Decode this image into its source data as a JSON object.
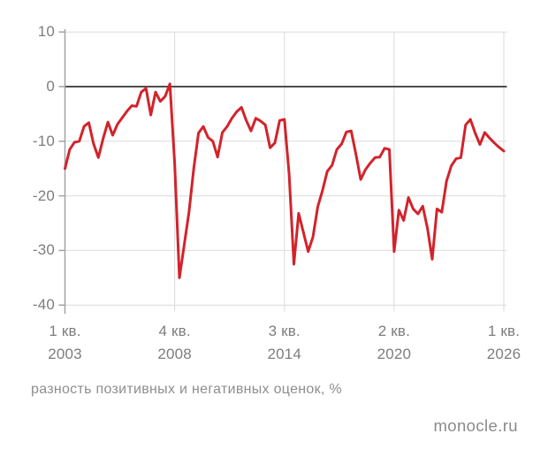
{
  "page": {
    "background": "#ffffff"
  },
  "watermark": {
    "text": "monocle.ru"
  },
  "chart_data": {
    "type": "line",
    "title": "",
    "caption": "разность позитивных и негативных оценок, %",
    "xlabel": "",
    "ylabel": "",
    "unit": "%",
    "grid": true,
    "zero_line": true,
    "legend_position": "none",
    "ylim": [
      -40,
      10
    ],
    "yticks": [
      10,
      0,
      -10,
      -20,
      -30,
      -40
    ],
    "xticks": [
      {
        "quarter": "1 кв.",
        "year": "2003"
      },
      {
        "quarter": "4 кв.",
        "year": "2008"
      },
      {
        "quarter": "3 кв.",
        "year": "2014"
      },
      {
        "quarter": "2 кв.",
        "year": "2020"
      },
      {
        "quarter": "1 кв.",
        "year": "2026"
      }
    ],
    "colors": {
      "line": "#d2232b",
      "zero_line": "#4d4d4d",
      "grid": "#dbdbdb",
      "axis": "#a3a3a3",
      "tick_text": "#7d7d7d"
    },
    "series": [
      {
        "name": "разность позитивных и негативных оценок, %",
        "frequency": "quarterly",
        "start": "2003-Q1",
        "end": "2026-Q1",
        "values": [
          -15.0,
          -11.5,
          -10.2,
          -10.0,
          -7.3,
          -6.6,
          -10.5,
          -13.0,
          -9.5,
          -6.5,
          -8.9,
          -6.9,
          -5.7,
          -4.5,
          -3.5,
          -3.6,
          -1.0,
          -0.3,
          -5.2,
          -1.0,
          -2.7,
          -1.8,
          0.5,
          -14.0,
          -35.0,
          -29.0,
          -23.0,
          -15.0,
          -8.5,
          -7.3,
          -9.3,
          -10.0,
          -12.9,
          -8.4,
          -7.3,
          -5.8,
          -4.6,
          -3.8,
          -6.2,
          -8.1,
          -5.8,
          -6.3,
          -7.0,
          -11.2,
          -10.3,
          -6.2,
          -6.0,
          -16.0,
          -32.5,
          -23.2,
          -26.7,
          -30.2,
          -27.5,
          -22.0,
          -19.0,
          -15.5,
          -14.4,
          -11.5,
          -10.5,
          -8.3,
          -8.1,
          -12.4,
          -17.0,
          -15.2,
          -14.0,
          -13.0,
          -12.9,
          -11.3,
          -11.5,
          -30.2,
          -22.6,
          -24.5,
          -20.3,
          -22.4,
          -23.3,
          -21.9,
          -26.0,
          -31.6,
          -22.4,
          -23.0,
          -17.3,
          -14.5,
          -13.2,
          -13.0,
          -7.0,
          -6.0,
          -8.5,
          -10.6,
          -8.4,
          -9.4,
          -10.3,
          -11.1,
          -11.8
        ]
      }
    ]
  }
}
